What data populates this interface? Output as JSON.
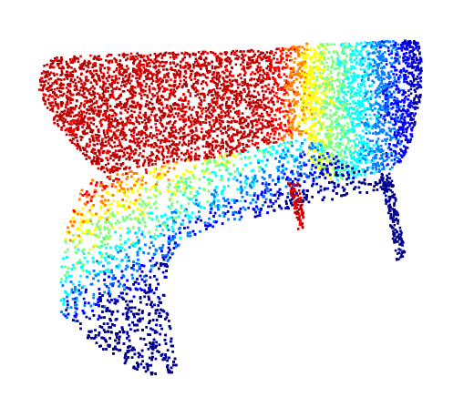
{
  "image": {
    "subject": "point-cloud",
    "object": "chair",
    "colormap": "jet",
    "background": "#ffffff",
    "point_colors": [
      "#00008f",
      "#0000ff",
      "#007fff",
      "#00ffff",
      "#7fff7f",
      "#ffff00",
      "#ff7f00",
      "#ff0000",
      "#b40000"
    ]
  }
}
